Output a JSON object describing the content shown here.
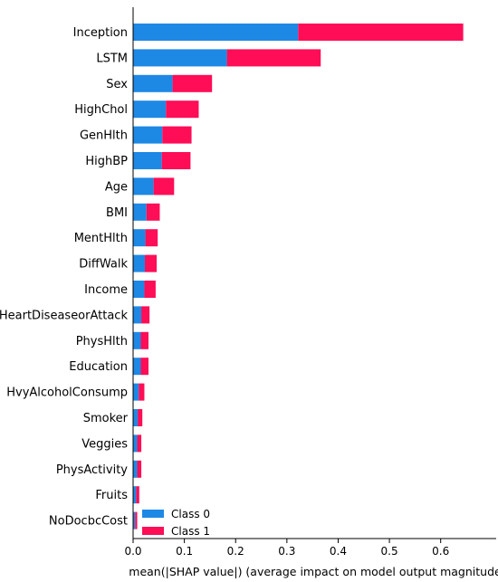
{
  "chart_data": {
    "type": "bar",
    "orientation": "horizontal",
    "stacked": true,
    "title": "",
    "xlabel": "mean(|SHAP value|) (average impact on model output magnitude",
    "ylabel": "",
    "xlim": [
      0,
      0.67
    ],
    "xticks": [
      "0.0",
      "0.1",
      "0.2",
      "0.3",
      "0.4",
      "0.5",
      "0.6"
    ],
    "xtick_values": [
      0,
      0.1,
      0.2,
      0.3,
      0.4,
      0.5,
      0.6
    ],
    "grid": false,
    "legend_position": "bottom-left",
    "categories": [
      "Inception",
      "LSTM",
      "Sex",
      "HighChol",
      "GenHlth",
      "HighBP",
      "Age",
      "BMI",
      "MentHlth",
      "DiffWalk",
      "Income",
      "HeartDiseaseorAttack",
      "PhysHlth",
      "Education",
      "HvyAlcoholConsump",
      "Smoker",
      "Veggies",
      "PhysActivity",
      "Fruits",
      "NoDocbcCost"
    ],
    "series": [
      {
        "name": "Class 0",
        "color": "#1e88e5",
        "values": [
          0.322,
          0.183,
          0.077,
          0.064,
          0.057,
          0.056,
          0.04,
          0.026,
          0.024,
          0.023,
          0.022,
          0.016,
          0.015,
          0.015,
          0.011,
          0.009,
          0.008,
          0.008,
          0.006,
          0.004
        ]
      },
      {
        "name": "Class 1",
        "color": "#ff0d57",
        "values": [
          0.322,
          0.183,
          0.077,
          0.064,
          0.057,
          0.056,
          0.04,
          0.026,
          0.024,
          0.023,
          0.022,
          0.016,
          0.015,
          0.015,
          0.011,
          0.009,
          0.008,
          0.008,
          0.006,
          0.004
        ]
      }
    ]
  }
}
